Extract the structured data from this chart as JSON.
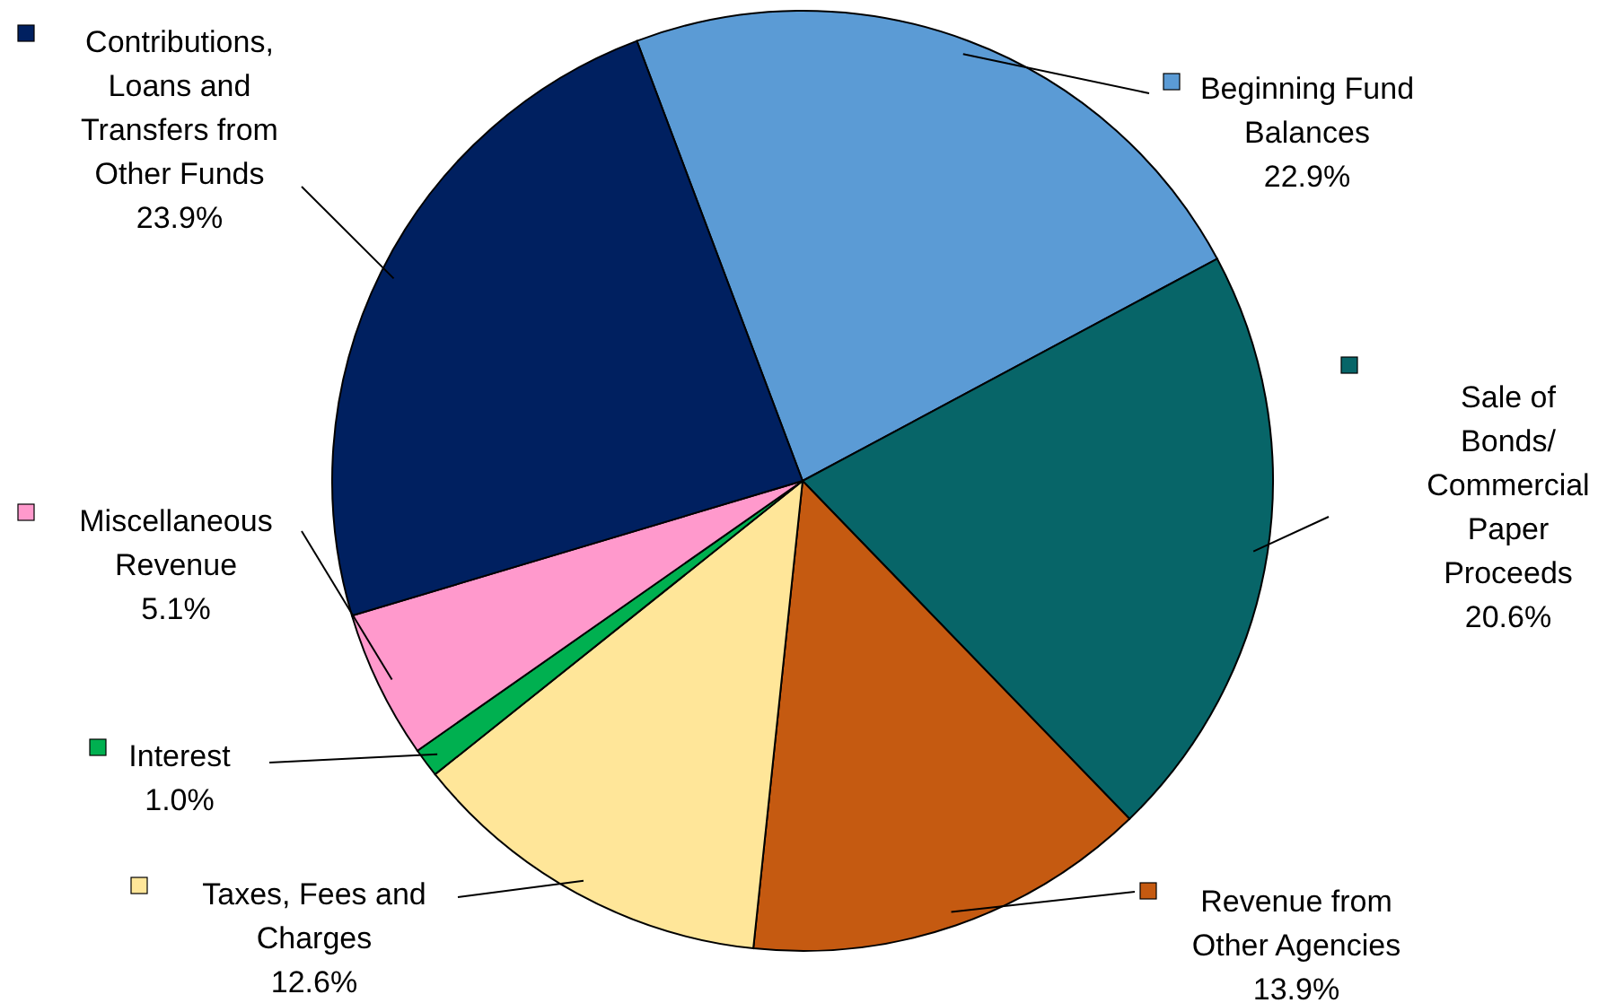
{
  "chart_data": {
    "type": "pie",
    "categories": [
      "Beginning Fund Balances",
      "Sale of Bonds/ Commercial Paper Proceeds",
      "Revenue from Other Agencies",
      "Taxes, Fees and Charges",
      "Interest",
      "Miscellaneous Revenue",
      "Contributions, Loans and Transfers from Other Funds"
    ],
    "values": [
      22.9,
      20.6,
      13.9,
      12.6,
      1.0,
      5.1,
      23.9
    ],
    "value_labels": [
      "22.9%",
      "20.6%",
      "13.9%",
      "12.6%",
      "1.0%",
      "5.1%",
      "23.9%"
    ],
    "legend": "bottom left",
    "colors": [
      "#5b9bd5",
      "#076568",
      "#c55a11",
      "#ffe699",
      "#00b050",
      "#ff99cc",
      "#002060"
    ]
  }
}
